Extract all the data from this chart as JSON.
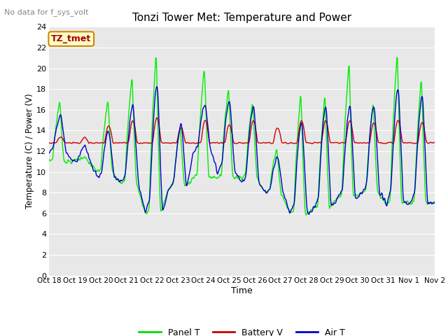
{
  "title": "Tonzi Tower Met: Temperature and Power",
  "top_left_text": "No data for f_sys_volt",
  "xlabel": "Time",
  "ylabel": "Temperature (C) / Power (V)",
  "ylim": [
    0,
    24
  ],
  "yticks": [
    0,
    2,
    4,
    6,
    8,
    10,
    12,
    14,
    16,
    18,
    20,
    22,
    24
  ],
  "xtick_labels": [
    "Oct 18",
    "Oct 19",
    "Oct 20",
    "Oct 21",
    "Oct 22",
    "Oct 23",
    "Oct 24",
    "Oct 25",
    "Oct 26",
    "Oct 27",
    "Oct 28",
    "Oct 29",
    "Oct 30",
    "Oct 31",
    "Nov 1",
    "Nov 2"
  ],
  "legend_labels": [
    "Panel T",
    "Battery V",
    "Air T"
  ],
  "legend_colors": [
    "#00dd00",
    "#cc0000",
    "#0000cc"
  ],
  "annotation_text": "TZ_tmet",
  "annotation_box_color": "#ffffcc",
  "annotation_border_color": "#cc8800",
  "bg_color": "#e8e8e8",
  "grid_color": "#ffffff",
  "panel_t_color": "#00ee00",
  "battery_v_color": "#cc0000",
  "air_t_color": "#0000cc",
  "n_days": 16,
  "n_points_per_day": 48,
  "panel_day_peaks": [
    17.0,
    11.5,
    17.2,
    19.5,
    22.0,
    14.5,
    20.5,
    18.5,
    17.0,
    12.5,
    18.0,
    17.8,
    21.0,
    17.0,
    22.0,
    19.5
  ],
  "panel_night_lows": [
    11.0,
    11.0,
    10.0,
    9.0,
    6.0,
    8.5,
    9.5,
    9.5,
    9.5,
    8.0,
    6.0,
    6.5,
    7.5,
    8.0,
    7.0,
    7.0
  ],
  "air_day_peaks": [
    15.5,
    12.5,
    14.0,
    16.5,
    18.5,
    14.5,
    16.7,
    17.0,
    16.5,
    11.5,
    15.0,
    16.5,
    16.5,
    16.5,
    18.0,
    17.5
  ],
  "air_night_lows": [
    12.0,
    11.0,
    9.5,
    9.0,
    6.0,
    8.5,
    12.0,
    10.0,
    9.0,
    8.0,
    6.0,
    6.5,
    7.5,
    8.0,
    7.0,
    7.0
  ],
  "batt_base": 12.8,
  "batt_spike_heights": [
    0.6,
    0.5,
    1.7,
    2.2,
    2.5,
    1.5,
    2.2,
    1.8,
    2.2,
    1.5,
    2.2,
    2.2,
    2.2,
    2.0,
    2.2,
    2.0
  ]
}
